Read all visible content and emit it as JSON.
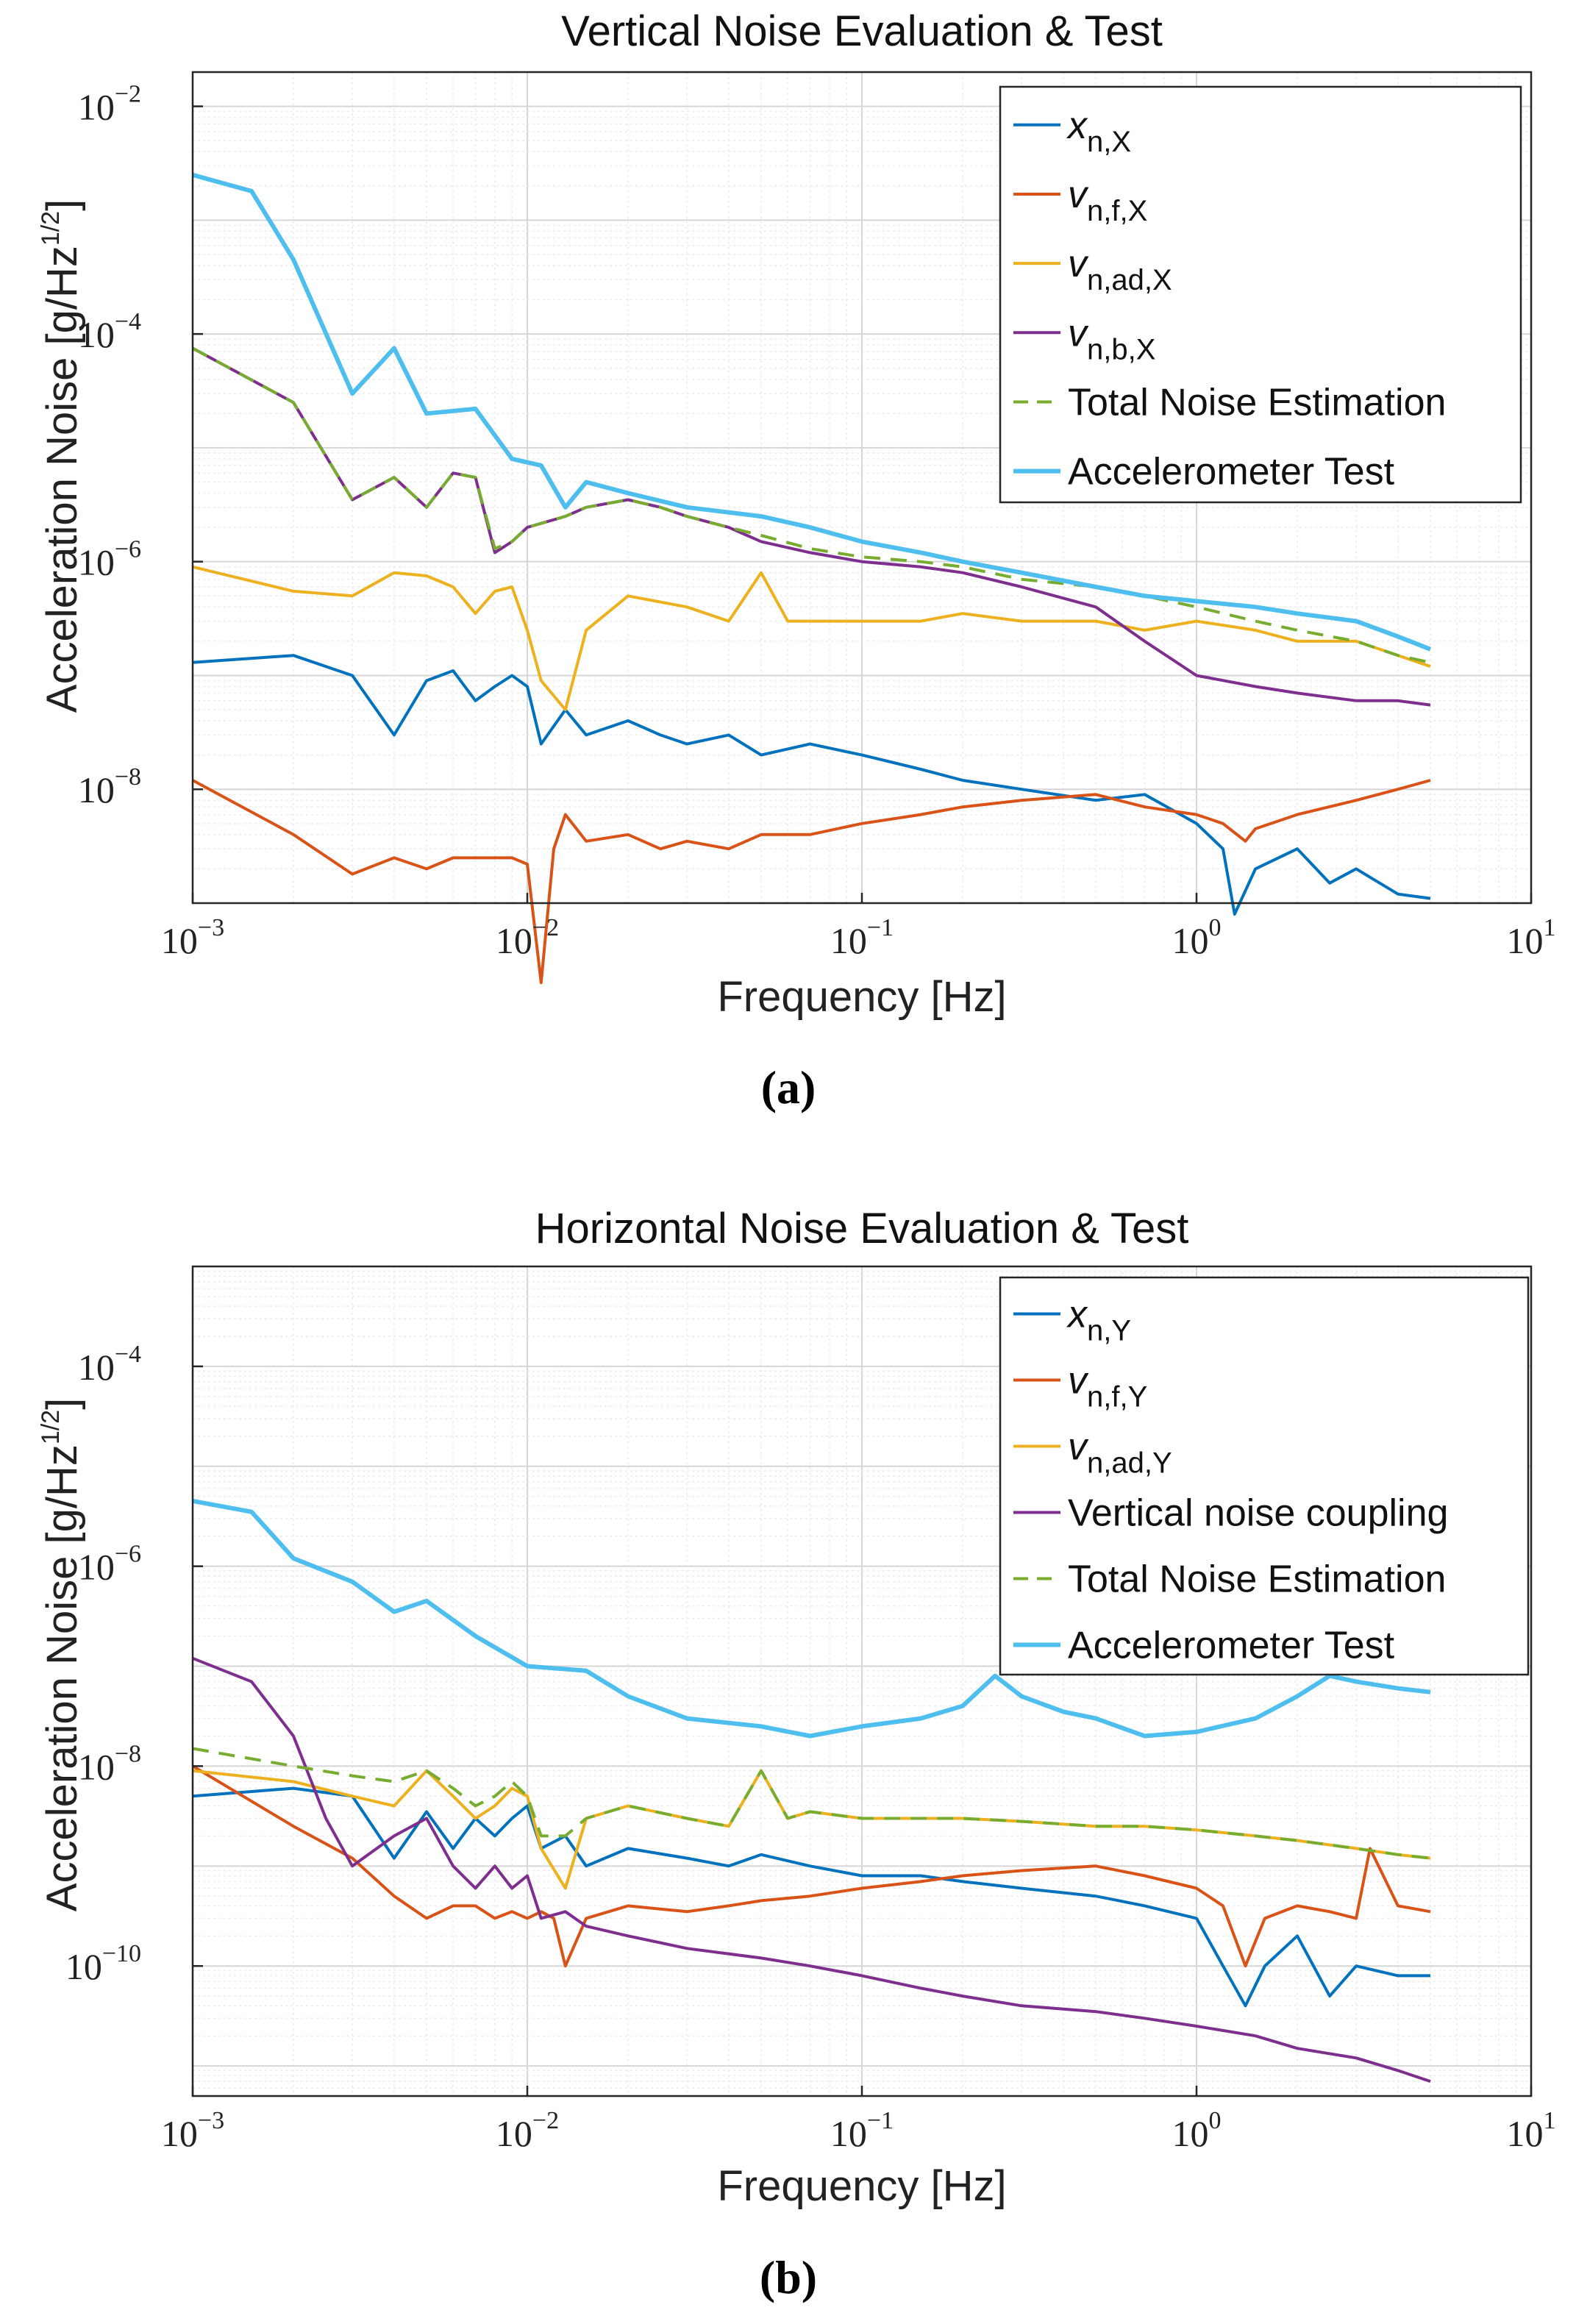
{
  "chart_data": [
    {
      "type": "line",
      "title": "Vertical Noise Evaluation & Test",
      "panel_label": "(a)",
      "xlabel": "Frequency [Hz]",
      "ylabel": "Acceleration Noise [g/Hz",
      "ylabel_exp": "1/2",
      "ylabel_close": "]",
      "xscale": "log",
      "yscale": "log",
      "xlim": [
        0.001,
        10
      ],
      "ylim": [
        1e-09,
        0.02
      ],
      "x_ticks": [
        {
          "value": 0.001,
          "mant": "10",
          "exp": "−3"
        },
        {
          "value": 0.01,
          "mant": "10",
          "exp": "−2"
        },
        {
          "value": 0.1,
          "mant": "10",
          "exp": "−1"
        },
        {
          "value": 1,
          "mant": "10",
          "exp": "0"
        },
        {
          "value": 10,
          "mant": "10",
          "exp": "1"
        }
      ],
      "y_ticks": [
        {
          "value": 1e-08,
          "mant": "10",
          "exp": "−8"
        },
        {
          "value": 1e-06,
          "mant": "10",
          "exp": "−6"
        },
        {
          "value": 0.0001,
          "mant": "10",
          "exp": "−4"
        },
        {
          "value": 0.01,
          "mant": "10",
          "exp": "−2"
        }
      ],
      "grid": true,
      "legend_position": "top-right",
      "series": [
        {
          "name": "x",
          "sub": "n,X",
          "italic_base": true,
          "color": "#0072BD",
          "dash": "",
          "x": [
            0.001,
            0.002,
            0.003,
            0.004,
            0.005,
            0.006,
            0.007,
            0.008,
            0.009,
            0.01,
            0.011,
            0.013,
            0.015,
            0.02,
            0.025,
            0.03,
            0.04,
            0.05,
            0.07,
            0.1,
            0.15,
            0.2,
            0.3,
            0.5,
            0.7,
            1.0,
            1.2,
            1.3,
            1.5,
            2.0,
            2.5,
            3.0,
            4.0,
            5.0
          ],
          "y": [
            1.3e-07,
            1.5e-07,
            1e-07,
            3e-08,
            9e-08,
            1.1e-07,
            6e-08,
            8e-08,
            1e-07,
            8e-08,
            2.5e-08,
            5e-08,
            3e-08,
            4e-08,
            3e-08,
            2.5e-08,
            3e-08,
            2e-08,
            2.5e-08,
            2e-08,
            1.5e-08,
            1.2e-08,
            1e-08,
            8e-09,
            9e-09,
            5e-09,
            3e-09,
            8e-10,
            2e-09,
            3e-09,
            1.5e-09,
            2e-09,
            1.2e-09,
            1.1e-09
          ]
        },
        {
          "name": "v",
          "sub": "n,f,X",
          "italic_base": true,
          "color": "#D95319",
          "dash": "",
          "x": [
            0.001,
            0.002,
            0.003,
            0.004,
            0.005,
            0.006,
            0.007,
            0.008,
            0.009,
            0.01,
            0.011,
            0.012,
            0.013,
            0.015,
            0.02,
            0.025,
            0.03,
            0.04,
            0.05,
            0.07,
            0.1,
            0.15,
            0.2,
            0.3,
            0.5,
            0.7,
            1.0,
            1.2,
            1.4,
            1.5,
            2.0,
            3.0,
            4.0,
            5.0
          ],
          "y": [
            1.2e-08,
            4e-09,
            1.8e-09,
            2.5e-09,
            2e-09,
            2.5e-09,
            2.5e-09,
            2.5e-09,
            2.5e-09,
            2.2e-09,
            2e-10,
            3e-09,
            6e-09,
            3.5e-09,
            4e-09,
            3e-09,
            3.5e-09,
            3e-09,
            4e-09,
            4e-09,
            5e-09,
            6e-09,
            7e-09,
            8e-09,
            9e-09,
            7e-09,
            6e-09,
            5e-09,
            3.5e-09,
            4.5e-09,
            6e-09,
            8e-09,
            1e-08,
            1.2e-08
          ]
        },
        {
          "name": "v",
          "sub": "n,ad,X",
          "italic_base": true,
          "color": "#EDB120",
          "dash": "",
          "x": [
            0.001,
            0.002,
            0.003,
            0.004,
            0.005,
            0.006,
            0.007,
            0.008,
            0.009,
            0.01,
            0.011,
            0.013,
            0.015,
            0.02,
            0.03,
            0.04,
            0.05,
            0.06,
            0.07,
            0.1,
            0.15,
            0.2,
            0.3,
            0.5,
            0.7,
            1.0,
            1.5,
            2.0,
            3.0,
            4.0,
            5.0
          ],
          "y": [
            9e-07,
            5.5e-07,
            5e-07,
            8e-07,
            7.5e-07,
            6e-07,
            3.5e-07,
            5.5e-07,
            6e-07,
            2.5e-07,
            9e-08,
            5e-08,
            2.5e-07,
            5e-07,
            4e-07,
            3e-07,
            8e-07,
            3e-07,
            3e-07,
            3e-07,
            3e-07,
            3.5e-07,
            3e-07,
            3e-07,
            2.5e-07,
            3e-07,
            2.5e-07,
            2e-07,
            2e-07,
            1.5e-07,
            1.2e-07
          ]
        },
        {
          "name": "v",
          "sub": "n,b,X",
          "italic_base": true,
          "color": "#7E2F8E",
          "dash": "",
          "x": [
            0.001,
            0.002,
            0.003,
            0.004,
            0.005,
            0.006,
            0.007,
            0.008,
            0.009,
            0.01,
            0.013,
            0.015,
            0.02,
            0.025,
            0.03,
            0.04,
            0.05,
            0.07,
            0.1,
            0.15,
            0.2,
            0.3,
            0.5,
            0.7,
            1.0,
            1.5,
            2.0,
            3.0,
            4.0,
            5.0
          ],
          "y": [
            7.5e-05,
            2.5e-05,
            3.5e-06,
            5.5e-06,
            3e-06,
            6e-06,
            5.5e-06,
            1.2e-06,
            1.5e-06,
            2e-06,
            2.5e-06,
            3e-06,
            3.5e-06,
            3e-06,
            2.5e-06,
            2e-06,
            1.5e-06,
            1.2e-06,
            1e-06,
            9e-07,
            8e-07,
            6e-07,
            4e-07,
            2e-07,
            1e-07,
            8e-08,
            7e-08,
            6e-08,
            6e-08,
            5.5e-08
          ]
        },
        {
          "name": "Total Noise Estimation",
          "sub": "",
          "italic_base": false,
          "color": "#77AC30",
          "dash": "22,14",
          "x": [
            0.001,
            0.002,
            0.003,
            0.004,
            0.005,
            0.006,
            0.007,
            0.008,
            0.009,
            0.01,
            0.013,
            0.015,
            0.02,
            0.025,
            0.03,
            0.04,
            0.05,
            0.07,
            0.1,
            0.15,
            0.2,
            0.3,
            0.5,
            0.7,
            1.0,
            1.5,
            2.0,
            3.0,
            4.0,
            5.0
          ],
          "y": [
            7.5e-05,
            2.5e-05,
            3.5e-06,
            5.5e-06,
            3e-06,
            6e-06,
            5.5e-06,
            1.3e-06,
            1.5e-06,
            2e-06,
            2.5e-06,
            3e-06,
            3.5e-06,
            3e-06,
            2.5e-06,
            2e-06,
            1.7e-06,
            1.3e-06,
            1.1e-06,
            1e-06,
            9e-07,
            7e-07,
            6e-07,
            5e-07,
            4e-07,
            3e-07,
            2.5e-07,
            2e-07,
            1.5e-07,
            1.3e-07
          ]
        },
        {
          "name": "Accelerometer Test",
          "sub": "",
          "italic_base": false,
          "color": "#4DBEEE",
          "dash": "",
          "x": [
            0.001,
            0.0015,
            0.002,
            0.003,
            0.004,
            0.005,
            0.007,
            0.009,
            0.011,
            0.013,
            0.015,
            0.02,
            0.03,
            0.05,
            0.07,
            0.1,
            0.15,
            0.2,
            0.3,
            0.5,
            0.7,
            1.0,
            1.5,
            2.0,
            3.0,
            4.0,
            5.0
          ],
          "y": [
            0.0025,
            0.0018,
            0.00045,
            3e-05,
            7.5e-05,
            2e-05,
            2.2e-05,
            8e-06,
            7e-06,
            3e-06,
            5e-06,
            4e-06,
            3e-06,
            2.5e-06,
            2e-06,
            1.5e-06,
            1.2e-06,
            1e-06,
            8e-07,
            6e-07,
            5e-07,
            4.5e-07,
            4e-07,
            3.5e-07,
            3e-07,
            2.2e-07,
            1.7e-07
          ]
        }
      ]
    },
    {
      "type": "line",
      "title": "Horizontal Noise Evaluation & Test",
      "panel_label": "(b)",
      "xlabel": "Frequency [Hz]",
      "ylabel": "Acceleration Noise [g/Hz",
      "ylabel_exp": "1/2",
      "ylabel_close": "]",
      "xscale": "log",
      "yscale": "log",
      "xlim": [
        0.001,
        10
      ],
      "ylim": [
        5e-12,
        0.001
      ],
      "x_ticks": [
        {
          "value": 0.001,
          "mant": "10",
          "exp": "−3"
        },
        {
          "value": 0.01,
          "mant": "10",
          "exp": "−2"
        },
        {
          "value": 0.1,
          "mant": "10",
          "exp": "−1"
        },
        {
          "value": 1,
          "mant": "10",
          "exp": "0"
        },
        {
          "value": 10,
          "mant": "10",
          "exp": "1"
        }
      ],
      "y_ticks": [
        {
          "value": 1e-10,
          "mant": "10",
          "exp": "−10"
        },
        {
          "value": 1e-08,
          "mant": "10",
          "exp": "−8"
        },
        {
          "value": 1e-06,
          "mant": "10",
          "exp": "−6"
        },
        {
          "value": 0.0001,
          "mant": "10",
          "exp": "−4"
        }
      ],
      "grid": true,
      "legend_position": "top-right",
      "series": [
        {
          "name": "x",
          "sub": "n,Y",
          "italic_base": true,
          "color": "#0072BD",
          "dash": "",
          "x": [
            0.001,
            0.002,
            0.003,
            0.004,
            0.005,
            0.006,
            0.007,
            0.008,
            0.009,
            0.01,
            0.011,
            0.013,
            0.015,
            0.02,
            0.03,
            0.04,
            0.05,
            0.07,
            0.1,
            0.15,
            0.2,
            0.3,
            0.5,
            0.7,
            1.0,
            1.2,
            1.4,
            1.6,
            2.0,
            2.5,
            3.0,
            4.0,
            5.0
          ],
          "y": [
            5e-09,
            6e-09,
            5e-09,
            1.2e-09,
            3.5e-09,
            1.5e-09,
            3e-09,
            2e-09,
            3e-09,
            4e-09,
            1.5e-09,
            2e-09,
            1e-09,
            1.5e-09,
            1.2e-09,
            1e-09,
            1.3e-09,
            1e-09,
            8e-10,
            8e-10,
            7e-10,
            6e-10,
            5e-10,
            4e-10,
            3e-10,
            1e-10,
            4e-11,
            1e-10,
            2e-10,
            5e-11,
            1e-10,
            8e-11,
            8e-11
          ]
        },
        {
          "name": "v",
          "sub": "n,f,Y",
          "italic_base": true,
          "color": "#D95319",
          "dash": "",
          "x": [
            0.001,
            0.002,
            0.003,
            0.004,
            0.005,
            0.006,
            0.007,
            0.008,
            0.009,
            0.01,
            0.011,
            0.012,
            0.013,
            0.015,
            0.02,
            0.03,
            0.04,
            0.05,
            0.07,
            0.1,
            0.15,
            0.2,
            0.3,
            0.5,
            0.7,
            1.0,
            1.2,
            1.4,
            1.6,
            2.0,
            2.5,
            3.0,
            3.3,
            4.0,
            5.0
          ],
          "y": [
            1e-08,
            2.5e-09,
            1.2e-09,
            5e-10,
            3e-10,
            4e-10,
            4e-10,
            3e-10,
            3.5e-10,
            3e-10,
            3.5e-10,
            3e-10,
            1e-10,
            3e-10,
            4e-10,
            3.5e-10,
            4e-10,
            4.5e-10,
            5e-10,
            6e-10,
            7e-10,
            8e-10,
            9e-10,
            1e-09,
            8e-10,
            6e-10,
            4e-10,
            1e-10,
            3e-10,
            4e-10,
            3.5e-10,
            3e-10,
            1.5e-09,
            4e-10,
            3.5e-10
          ]
        },
        {
          "name": "v",
          "sub": "n,ad,Y",
          "italic_base": true,
          "color": "#EDB120",
          "dash": "",
          "x": [
            0.001,
            0.002,
            0.003,
            0.004,
            0.005,
            0.006,
            0.007,
            0.008,
            0.009,
            0.01,
            0.011,
            0.013,
            0.015,
            0.02,
            0.03,
            0.04,
            0.05,
            0.06,
            0.07,
            0.1,
            0.15,
            0.2,
            0.3,
            0.5,
            0.7,
            1.0,
            1.5,
            2.0,
            3.0,
            4.0,
            5.0
          ],
          "y": [
            9e-09,
            7e-09,
            5e-09,
            4e-09,
            9e-09,
            5e-09,
            3e-09,
            4e-09,
            6e-09,
            5e-09,
            1.5e-09,
            6e-10,
            3e-09,
            4e-09,
            3e-09,
            2.5e-09,
            9e-09,
            3e-09,
            3.5e-09,
            3e-09,
            3e-09,
            3e-09,
            2.8e-09,
            2.5e-09,
            2.5e-09,
            2.3e-09,
            2e-09,
            1.8e-09,
            1.5e-09,
            1.3e-09,
            1.2e-09
          ]
        },
        {
          "name": "Vertical noise coupling",
          "sub": "",
          "italic_base": false,
          "color": "#7E2F8E",
          "dash": "",
          "x": [
            0.001,
            0.0015,
            0.002,
            0.0025,
            0.003,
            0.004,
            0.005,
            0.006,
            0.007,
            0.008,
            0.009,
            0.01,
            0.011,
            0.013,
            0.015,
            0.02,
            0.03,
            0.05,
            0.07,
            0.1,
            0.15,
            0.2,
            0.3,
            0.5,
            0.7,
            1.0,
            1.5,
            2.0,
            3.0,
            4.0,
            5.0
          ],
          "y": [
            1.2e-07,
            7e-08,
            2e-08,
            3e-09,
            1e-09,
            2e-09,
            3e-09,
            1e-09,
            6e-10,
            1e-09,
            6e-10,
            8e-10,
            3e-10,
            3.5e-10,
            2.5e-10,
            2e-10,
            1.5e-10,
            1.2e-10,
            1e-10,
            8e-11,
            6e-11,
            5e-11,
            4e-11,
            3.5e-11,
            3e-11,
            2.5e-11,
            2e-11,
            1.5e-11,
            1.2e-11,
            9e-12,
            7e-12
          ]
        },
        {
          "name": "Total Noise Estimation",
          "sub": "",
          "italic_base": false,
          "color": "#77AC30",
          "dash": "22,14",
          "x": [
            0.001,
            0.002,
            0.003,
            0.004,
            0.005,
            0.006,
            0.007,
            0.008,
            0.009,
            0.01,
            0.011,
            0.013,
            0.015,
            0.02,
            0.03,
            0.04,
            0.05,
            0.06,
            0.07,
            0.1,
            0.15,
            0.2,
            0.3,
            0.5,
            0.7,
            1.0,
            1.5,
            2.0,
            3.0,
            4.0,
            5.0
          ],
          "y": [
            1.5e-08,
            1e-08,
            8e-09,
            7e-09,
            9e-09,
            6e-09,
            4e-09,
            5e-09,
            7e-09,
            5e-09,
            2e-09,
            2e-09,
            3e-09,
            4e-09,
            3e-09,
            2.5e-09,
            9e-09,
            3e-09,
            3.5e-09,
            3e-09,
            3e-09,
            3e-09,
            2.8e-09,
            2.5e-09,
            2.5e-09,
            2.3e-09,
            2e-09,
            1.8e-09,
            1.5e-09,
            1.3e-09,
            1.2e-09
          ]
        },
        {
          "name": "Accelerometer Test",
          "sub": "",
          "italic_base": false,
          "color": "#4DBEEE",
          "dash": "",
          "x": [
            0.001,
            0.0015,
            0.002,
            0.003,
            0.004,
            0.005,
            0.007,
            0.01,
            0.015,
            0.02,
            0.03,
            0.05,
            0.07,
            0.1,
            0.15,
            0.2,
            0.25,
            0.3,
            0.4,
            0.5,
            0.7,
            1.0,
            1.5,
            2.0,
            2.5,
            3.0,
            4.0,
            5.0
          ],
          "y": [
            4.5e-06,
            3.5e-06,
            1.2e-06,
            7e-07,
            3.5e-07,
            4.5e-07,
            2e-07,
            1e-07,
            9e-08,
            5e-08,
            3e-08,
            2.5e-08,
            2e-08,
            2.5e-08,
            3e-08,
            4e-08,
            8e-08,
            5e-08,
            3.5e-08,
            3e-08,
            2e-08,
            2.2e-08,
            3e-08,
            5e-08,
            8e-08,
            7e-08,
            6e-08,
            5.5e-08
          ]
        }
      ]
    }
  ]
}
